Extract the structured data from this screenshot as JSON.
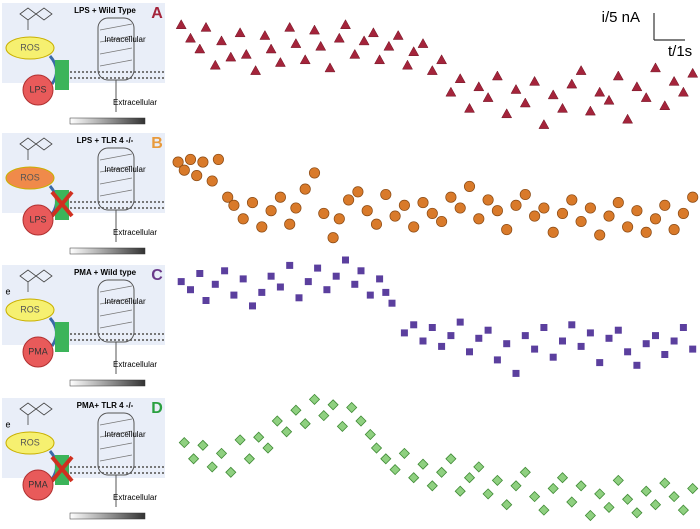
{
  "scale_bar": {
    "y_label": "i/5 nA",
    "x_label": "t/1s",
    "y_length": 5,
    "x_length": 1
  },
  "chart_data": [
    {
      "type": "scatter",
      "label": "A",
      "label_color": "#a4243b",
      "title": "LPS + Wild Type",
      "intracellular": "Intracellular",
      "extracellular": "Extracellular",
      "species": "ROS",
      "stimulus": "LPS",
      "knockout": false,
      "marker": "triangle",
      "color": "#a4243b",
      "x": [
        0.2,
        0.5,
        0.8,
        1.0,
        1.3,
        1.5,
        1.8,
        2.1,
        2.3,
        2.6,
        2.9,
        3.1,
        3.4,
        3.7,
        3.9,
        4.2,
        4.5,
        4.7,
        5.0,
        5.3,
        5.5,
        5.8,
        6.1,
        6.4,
        6.6,
        6.9,
        7.2,
        7.5,
        7.7,
        8.0,
        8.3,
        8.6,
        8.9,
        9.2,
        9.5,
        9.8,
        10.1,
        10.4,
        10.7,
        11.0,
        11.3,
        11.6,
        11.9,
        12.2,
        12.5,
        12.8,
        13.1,
        13.4,
        13.7,
        14.0,
        14.3,
        14.6,
        14.9,
        15.2,
        15.5,
        15.8,
        16.1,
        16.4,
        16.7
      ],
      "values": [
        19.5,
        17,
        15,
        19,
        12,
        16.5,
        13.5,
        18,
        14,
        11,
        17.5,
        15,
        12.5,
        19,
        16,
        13,
        18.5,
        15.5,
        11.5,
        17,
        19.5,
        14,
        16.5,
        18,
        13,
        15.5,
        17.5,
        12,
        14.5,
        16,
        11,
        13,
        7,
        9.5,
        4,
        8,
        6,
        10,
        3,
        7.5,
        5,
        9,
        1,
        6.5,
        4,
        8.5,
        11,
        3.5,
        7,
        5.5,
        10,
        2,
        8,
        6,
        11.5,
        4.5,
        9,
        7,
        10.5
      ]
    },
    {
      "type": "scatter",
      "label": "B",
      "label_color": "#e89a3c",
      "title": "LPS + TLR 4 -/-",
      "intracellular": "Intracellular",
      "extracellular": "Extracellular",
      "species": "ROS",
      "stimulus": "LPS",
      "knockout": true,
      "marker": "circle",
      "color": "#d97a2a",
      "x": [
        0.1,
        0.3,
        0.5,
        0.7,
        0.9,
        1.2,
        1.4,
        1.7,
        1.9,
        2.2,
        2.5,
        2.8,
        3.1,
        3.4,
        3.7,
        3.9,
        4.2,
        4.5,
        4.8,
        5.1,
        5.3,
        5.6,
        5.9,
        6.2,
        6.5,
        6.8,
        7.1,
        7.4,
        7.7,
        8.0,
        8.3,
        8.6,
        8.9,
        9.2,
        9.5,
        9.8,
        10.1,
        10.4,
        10.7,
        11.0,
        11.3,
        11.6,
        11.9,
        12.2,
        12.5,
        12.8,
        13.1,
        13.4,
        13.7,
        14.0,
        14.3,
        14.6,
        14.9,
        15.2,
        15.5,
        15.8,
        16.1,
        16.4,
        16.7
      ],
      "values": [
        18.5,
        17,
        19,
        16,
        18.5,
        15,
        19,
        12,
        10.5,
        8,
        11,
        6.5,
        9.5,
        12,
        7,
        10,
        13.5,
        16.5,
        9,
        4.5,
        8,
        11.5,
        13,
        9.5,
        7,
        12.5,
        8.5,
        10.5,
        6.5,
        11,
        9,
        7.5,
        12,
        10,
        14,
        8,
        11.5,
        9.5,
        6,
        10.5,
        12.5,
        8.5,
        10,
        5.5,
        9,
        11.5,
        7.5,
        10,
        5,
        8.5,
        11,
        6.5,
        9.5,
        5.5,
        8,
        10.5,
        6,
        9,
        12
      ]
    },
    {
      "type": "scatter",
      "label": "C",
      "label_color": "#6a3a8a",
      "title": "PMA + Wild type",
      "intracellular": "Intracellular",
      "extracellular": "Extracellular",
      "species": "ROS",
      "stimulus": "PMA",
      "electron": "e",
      "knockout": false,
      "marker": "square",
      "color": "#5b3f9e",
      "x": [
        0.2,
        0.5,
        0.8,
        1.0,
        1.3,
        1.6,
        1.9,
        2.2,
        2.5,
        2.8,
        3.1,
        3.4,
        3.7,
        4.0,
        4.3,
        4.6,
        4.9,
        5.2,
        5.5,
        5.8,
        6.0,
        6.3,
        6.6,
        6.8,
        7.0,
        7.4,
        7.7,
        8.0,
        8.3,
        8.6,
        8.9,
        9.2,
        9.5,
        9.8,
        10.1,
        10.4,
        10.7,
        11.0,
        11.3,
        11.6,
        11.9,
        12.2,
        12.5,
        12.8,
        13.1,
        13.4,
        13.7,
        14.0,
        14.3,
        14.6,
        14.9,
        15.2,
        15.5,
        15.8,
        16.1,
        16.4,
        16.7
      ],
      "values": [
        21,
        19.5,
        22.5,
        17.5,
        20.5,
        23,
        18.5,
        21.5,
        16.5,
        19,
        22,
        20,
        24,
        18,
        21,
        23.5,
        19.5,
        22,
        25,
        20.5,
        23,
        18.5,
        21.5,
        19,
        17,
        11.5,
        13,
        10,
        12.5,
        9,
        11,
        13.5,
        8,
        10.5,
        12,
        6.5,
        9.5,
        4,
        11,
        8.5,
        12.5,
        7,
        10,
        13,
        9,
        11.5,
        6,
        10.5,
        12,
        8,
        5.5,
        9.5,
        11,
        7.5,
        10,
        12.5,
        8.5
      ]
    },
    {
      "type": "scatter",
      "label": "D",
      "label_color": "#2aa040",
      "title": "PMA+ TLR 4 -/-",
      "intracellular": "Intracellular",
      "extracellular": "Extracellular",
      "species": "ROS",
      "stimulus": "PMA",
      "electron": "e",
      "knockout": true,
      "marker": "diamond",
      "color": "#8fd080",
      "x": [
        0.3,
        0.6,
        0.9,
        1.2,
        1.5,
        1.8,
        2.1,
        2.4,
        2.7,
        3.0,
        3.3,
        3.6,
        3.9,
        4.2,
        4.5,
        4.8,
        5.1,
        5.4,
        5.7,
        6.0,
        6.3,
        6.5,
        6.8,
        7.1,
        7.4,
        7.7,
        8.0,
        8.3,
        8.6,
        8.9,
        9.2,
        9.5,
        9.8,
        10.1,
        10.4,
        10.7,
        11.0,
        11.3,
        11.6,
        11.9,
        12.2,
        12.5,
        12.8,
        13.1,
        13.4,
        13.7,
        14.0,
        14.3,
        14.6,
        14.9,
        15.2,
        15.5,
        15.8,
        16.1,
        16.4,
        16.7
      ],
      "values": [
        16,
        13,
        15.5,
        11.5,
        14,
        10.5,
        16.5,
        13,
        17,
        15,
        20,
        18,
        22,
        19.5,
        24,
        21,
        23,
        19,
        22.5,
        20,
        17.5,
        15,
        13,
        11,
        14,
        9.5,
        12,
        8,
        10.5,
        13,
        7,
        9.5,
        11.5,
        6.5,
        9,
        4.5,
        8,
        10.5,
        6,
        3.5,
        7.5,
        9.5,
        5,
        8,
        2.5,
        6.5,
        4,
        9,
        5.5,
        3,
        7,
        4.5,
        8.5,
        6,
        3.5,
        7.5
      ]
    }
  ]
}
